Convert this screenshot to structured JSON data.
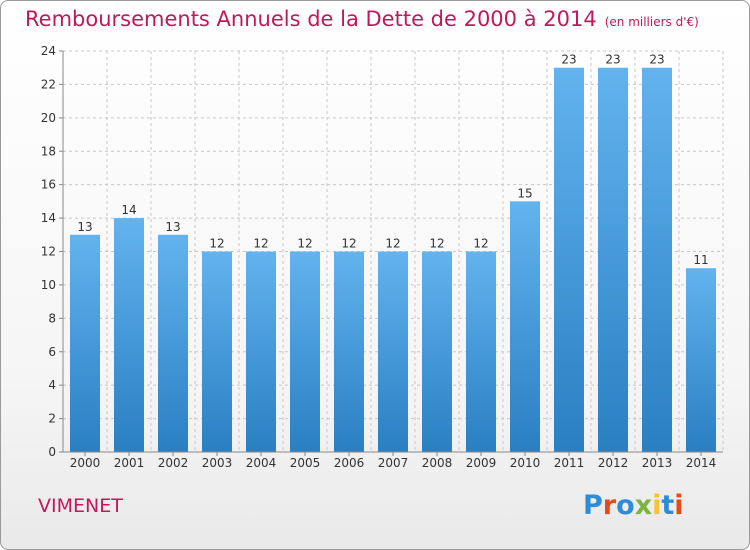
{
  "header": {
    "title": "Remboursements Annuels de la Dette de 2000 à 2014",
    "unit": "(en milliers d'€)"
  },
  "footer": {
    "commune": "VIMENET",
    "logo_letters": [
      {
        "char": "P",
        "color": "#2e8bd6"
      },
      {
        "char": "r",
        "color": "#e64a19"
      },
      {
        "char": "o",
        "color": "#2e8bd6"
      },
      {
        "char": "x",
        "color": "#7cb342"
      },
      {
        "char": "i",
        "color": "#fbc02d"
      },
      {
        "char": "t",
        "color": "#2e8bd6"
      },
      {
        "char": "i",
        "color": "#e64a19"
      }
    ]
  },
  "colors": {
    "title": "#c2185b",
    "bar_top": "#62b3ee",
    "bar_bottom": "#2a7fc3",
    "grid": "#c8c8c8",
    "axis_text": "#333333"
  },
  "chart_data": {
    "type": "bar",
    "title": "Remboursements Annuels de la Dette de 2000 à 2014",
    "subtitle": "(en milliers d'€)",
    "xlabel": "",
    "ylabel": "",
    "categories": [
      "2000",
      "2001",
      "2002",
      "2003",
      "2004",
      "2005",
      "2006",
      "2007",
      "2008",
      "2009",
      "2010",
      "2011",
      "2012",
      "2013",
      "2014"
    ],
    "values": [
      13,
      14,
      13,
      12,
      12,
      12,
      12,
      12,
      12,
      12,
      15,
      23,
      23,
      23,
      11
    ],
    "ylim": [
      0,
      24
    ],
    "yticks": [
      0,
      2,
      4,
      6,
      8,
      10,
      12,
      14,
      16,
      18,
      20,
      22,
      24
    ],
    "grid": true,
    "data_labels": true
  }
}
